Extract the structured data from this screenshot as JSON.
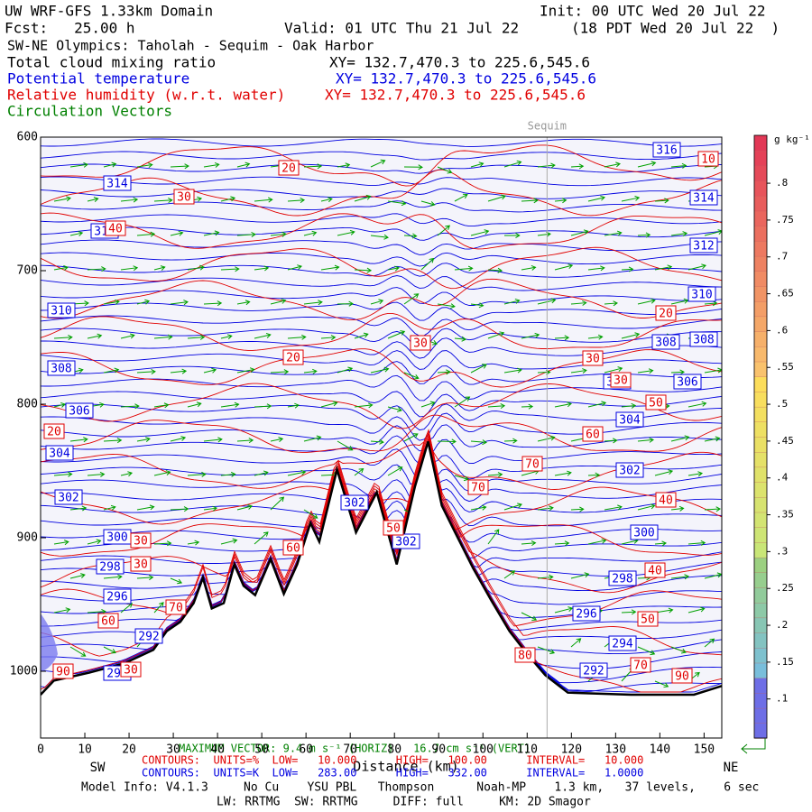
{
  "header": {
    "model": "UW WRF-GFS 1.33km Domain",
    "init": "Init: 00 UTC Wed 20 Jul 22",
    "fcst": "Fcst:   25.00 h",
    "valid": "Valid: 01 UTC Thu 21 Jul 22",
    "local": "(18 PDT Wed 20 Jul 22  )",
    "transect": "SW-NE Olympics: Taholah - Sequim - Oak Harbor",
    "fields": [
      {
        "name": "Total cloud mixing ratio",
        "color": "#000000",
        "xy": "XY= 132.7,470.3 to 225.6,545.6"
      },
      {
        "name": "Potential temperature",
        "color": "#0000e0",
        "xy": "XY= 132.7,470.3 to 225.6,545.6"
      },
      {
        "name": "Relative humidity (w.r.t. water)",
        "color": "#e00000",
        "xy": "XY= 132.7,470.3 to 225.6,545.6"
      },
      {
        "name": "Circulation Vectors",
        "color": "#008000"
      }
    ]
  },
  "chart_data": {
    "type": "cross-section",
    "xlabel": "Distance (km)",
    "left_end": "SW",
    "right_end": "NE",
    "xlim": [
      0,
      154
    ],
    "xticks": [
      0,
      10,
      20,
      30,
      40,
      50,
      60,
      70,
      80,
      90,
      100,
      110,
      120,
      130,
      140,
      150
    ],
    "ylim": [
      600,
      1050
    ],
    "yticks": [
      600,
      700,
      800,
      900,
      1000
    ],
    "marker": {
      "label": "Sequim",
      "x": 114.5
    },
    "terrain": {
      "color": "#000000",
      "x": [
        0,
        3,
        11,
        19,
        25.5,
        28.5,
        31.6,
        34.6,
        36.7,
        38.7,
        41.4,
        43.8,
        45.9,
        48.5,
        52,
        55,
        58,
        61,
        63,
        67,
        71.3,
        76,
        80.5,
        84.6,
        87.6,
        90.7,
        93.7,
        97.8,
        101.9,
        106,
        110,
        114.1,
        119.2,
        133.5,
        147.7,
        154
      ],
      "values": [
        1017.6,
        1007,
        1001,
        994,
        984,
        970,
        963,
        949,
        930,
        953,
        949,
        920,
        936,
        943,
        916,
        942,
        920,
        889,
        903,
        849,
        896,
        866,
        920,
        862,
        828,
        876,
        896,
        923,
        947,
        970,
        987,
        1003,
        1016,
        1017.6,
        1017.6,
        1011
      ]
    },
    "theta_labels": [
      316,
      314,
      314,
      314,
      312,
      310,
      310,
      308,
      308,
      308,
      306,
      306,
      304,
      306,
      304,
      302,
      302,
      302,
      302,
      300,
      300,
      298,
      298,
      296,
      296,
      294,
      292,
      292,
      290
    ],
    "theta_color": "#0000e0",
    "rh_labels": [
      10,
      20,
      30,
      40,
      20,
      30,
      20,
      30,
      30,
      50,
      20,
      60,
      70,
      70,
      40,
      60,
      30,
      30,
      50,
      40,
      60,
      70,
      50,
      70,
      90,
      30,
      90,
      80
    ],
    "rh_color": "#e00000",
    "vector_color": "#00a000",
    "colorbar": {
      "unit": "g kg⁻¹",
      "lim": [
        0.047,
        0.865
      ],
      "ticks": [
        {
          "value": 0.1,
          "label": ".1"
        },
        {
          "value": 0.15,
          "label": ".15"
        },
        {
          "value": 0.2,
          "label": ".2"
        },
        {
          "value": 0.25,
          "label": ".25"
        },
        {
          "value": 0.3,
          "label": ".3"
        },
        {
          "value": 0.35,
          "label": ".35"
        },
        {
          "value": 0.4,
          "label": ".4"
        },
        {
          "value": 0.45,
          "label": ".45"
        },
        {
          "value": 0.5,
          "label": ".5"
        },
        {
          "value": 0.55,
          "label": ".55"
        },
        {
          "value": 0.6,
          "label": ".6"
        },
        {
          "value": 0.65,
          "label": ".65"
        },
        {
          "value": 0.7,
          "label": ".7"
        },
        {
          "value": 0.75,
          "label": ".75"
        },
        {
          "value": 0.8,
          "label": ".8"
        }
      ]
    }
  },
  "footer": {
    "max_vector": "MAXIMUM VECTOR: 9.4 m s⁻¹ (HORIZ)   16.7 cm s⁻¹ (VERT)",
    "rh_contours": "CONTOURS:  UNITS=%  LOW=   10.000      HIGH=   100.00      INTERVAL=   10.000",
    "theta_contours": "CONTOURS:  UNITS=K  LOW=   283.00      HIGH=   332.00      INTERVAL=   1.0000",
    "model_info": "Model Info: V4.1.3     No Cu    YSU PBL   Thompson      Noah-MP    1.3 km,   37 levels,    6 sec",
    "physics": "LW: RRTMG  SW: RRTMG     DIFF: full     KM: 2D Smagor"
  }
}
